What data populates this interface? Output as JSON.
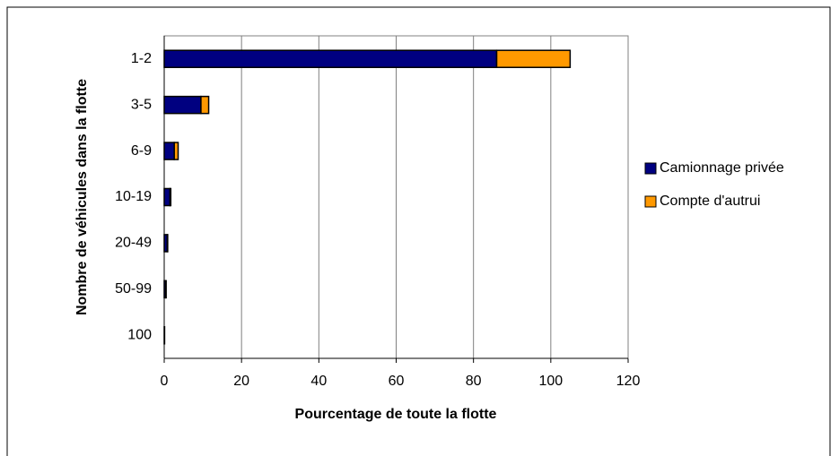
{
  "chart_data": {
    "type": "stacked-barh",
    "xlabel": "Pourcentage de toute la flotte",
    "ylabel": "Nombre de véhicules dans la flotte",
    "categories": [
      "1-2",
      "3-5",
      "6-9",
      "10-19",
      "20-49",
      "50-99",
      "100"
    ],
    "series": [
      {
        "name": "Camionnage privée",
        "color": "#000080",
        "values": [
          86,
          9.5,
          2.6,
          1.5,
          0.8,
          0.4,
          0.1
        ]
      },
      {
        "name": "Compte d'autrui",
        "color": "#ff9900",
        "values": [
          19,
          2,
          1,
          0.2,
          0.1,
          0.1,
          0
        ]
      }
    ],
    "xlim": [
      0,
      120
    ],
    "xticks": [
      0,
      20,
      40,
      60,
      80,
      100,
      120
    ],
    "grid": true,
    "legend": "right"
  }
}
